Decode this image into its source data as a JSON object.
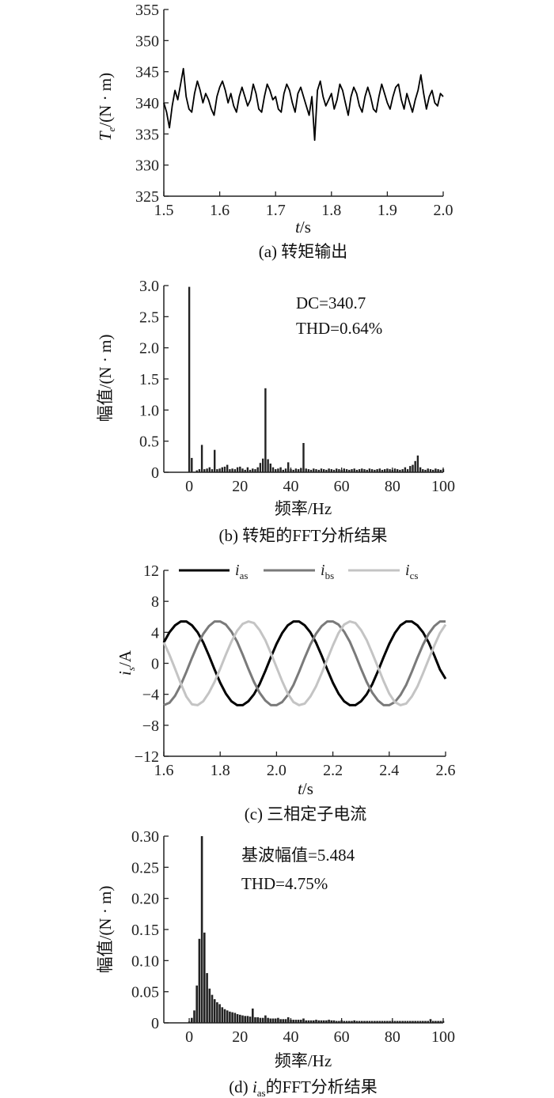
{
  "chart_data": [
    {
      "id": "a",
      "type": "line",
      "caption": "(a) 转矩输出",
      "xlabel_var": "t",
      "xlabel_unit": "/s",
      "ylabel_var": "T",
      "ylabel_sub": "e",
      "ylabel_unit": "/(N · m)",
      "xlim": [
        1.5,
        2.0
      ],
      "ylim": [
        325,
        355
      ],
      "xticks": [
        1.5,
        1.6,
        1.7,
        1.8,
        1.9,
        2.0
      ],
      "xtick_labels": [
        "1.5",
        "1.6",
        "1.7",
        "1.8",
        "1.9",
        "2.0"
      ],
      "yticks": [
        325,
        330,
        335,
        340,
        345,
        350,
        355
      ],
      "ytick_labels": [
        "325",
        "330",
        "335",
        "340",
        "345",
        "350",
        "355"
      ],
      "series": [
        {
          "color": "#000000",
          "x": [
            1.5,
            1.505,
            1.51,
            1.515,
            1.52,
            1.525,
            1.53,
            1.535,
            1.54,
            1.545,
            1.55,
            1.555,
            1.56,
            1.565,
            1.57,
            1.575,
            1.58,
            1.585,
            1.59,
            1.595,
            1.6,
            1.605,
            1.61,
            1.615,
            1.62,
            1.625,
            1.63,
            1.635,
            1.64,
            1.645,
            1.65,
            1.655,
            1.66,
            1.665,
            1.67,
            1.675,
            1.68,
            1.685,
            1.69,
            1.695,
            1.7,
            1.705,
            1.71,
            1.715,
            1.72,
            1.725,
            1.73,
            1.735,
            1.74,
            1.745,
            1.75,
            1.755,
            1.76,
            1.765,
            1.77,
            1.775,
            1.78,
            1.785,
            1.79,
            1.795,
            1.8,
            1.805,
            1.81,
            1.815,
            1.82,
            1.825,
            1.83,
            1.835,
            1.84,
            1.845,
            1.85,
            1.855,
            1.86,
            1.865,
            1.87,
            1.875,
            1.88,
            1.885,
            1.89,
            1.895,
            1.9,
            1.905,
            1.91,
            1.915,
            1.92,
            1.925,
            1.93,
            1.935,
            1.94,
            1.945,
            1.95,
            1.955,
            1.96,
            1.965,
            1.97,
            1.975,
            1.98,
            1.985,
            1.99,
            1.995,
            2.0
          ],
          "y": [
            340.0,
            338.5,
            336.0,
            339.5,
            342.0,
            340.5,
            343.0,
            345.5,
            341.0,
            339.0,
            338.5,
            341.5,
            343.5,
            342.0,
            340.0,
            341.5,
            340.5,
            339.0,
            338.0,
            341.0,
            342.5,
            343.5,
            342.0,
            340.0,
            341.5,
            339.5,
            338.5,
            341.0,
            342.5,
            341.0,
            339.5,
            340.5,
            343.0,
            341.5,
            339.0,
            338.5,
            341.0,
            343.0,
            342.0,
            340.5,
            341.0,
            339.0,
            338.5,
            341.5,
            343.0,
            342.0,
            340.0,
            338.5,
            341.5,
            342.5,
            341.0,
            339.5,
            338.0,
            341.0,
            334.0,
            342.0,
            343.5,
            341.0,
            339.5,
            340.5,
            341.5,
            339.0,
            340.5,
            343.0,
            342.0,
            340.0,
            338.0,
            341.0,
            342.5,
            341.5,
            339.5,
            338.5,
            341.0,
            342.5,
            341.0,
            339.0,
            338.5,
            341.0,
            343.0,
            341.5,
            340.0,
            339.0,
            341.0,
            342.5,
            343.0,
            340.5,
            339.0,
            341.5,
            340.0,
            338.5,
            340.5,
            342.0,
            344.5,
            341.5,
            339.0,
            341.0,
            342.0,
            340.0,
            339.5,
            341.5,
            341.0
          ]
        }
      ]
    },
    {
      "id": "b",
      "type": "bar",
      "caption": "(b) 转矩的FFT分析结果",
      "xlabel": "频率/Hz",
      "ylabel": "幅值/(N · m)",
      "xlim": [
        -10,
        100
      ],
      "ylim": [
        0,
        3.0
      ],
      "xticks": [
        0,
        20,
        40,
        60,
        80,
        100
      ],
      "xtick_labels": [
        "0",
        "20",
        "40",
        "60",
        "80",
        "100"
      ],
      "yticks": [
        0,
        0.5,
        1.0,
        1.5,
        2.0,
        2.5,
        3.0
      ],
      "ytick_labels": [
        "0",
        "0.5",
        "1.0",
        "1.5",
        "2.0",
        "2.5",
        "3.0"
      ],
      "annotations": [
        "DC=340.7",
        "THD=0.64%"
      ],
      "x": [
        0,
        1,
        2,
        3,
        4,
        5,
        6,
        7,
        8,
        9,
        10,
        11,
        12,
        13,
        14,
        15,
        16,
        17,
        18,
        19,
        20,
        21,
        22,
        23,
        24,
        25,
        26,
        27,
        28,
        29,
        30,
        31,
        32,
        33,
        34,
        35,
        36,
        37,
        38,
        39,
        40,
        41,
        42,
        43,
        44,
        45,
        46,
        47,
        48,
        49,
        50,
        51,
        52,
        53,
        54,
        55,
        56,
        57,
        58,
        59,
        60,
        61,
        62,
        63,
        64,
        65,
        66,
        67,
        68,
        69,
        70,
        71,
        72,
        73,
        74,
        75,
        76,
        77,
        78,
        79,
        80,
        81,
        82,
        83,
        84,
        85,
        86,
        87,
        88,
        89,
        90,
        91,
        92,
        93,
        94,
        95,
        96,
        97,
        98,
        99,
        100
      ],
      "values": [
        2.98,
        0.23,
        0.01,
        0.03,
        0.05,
        0.44,
        0.05,
        0.06,
        0.08,
        0.05,
        0.36,
        0.05,
        0.06,
        0.08,
        0.09,
        0.12,
        0.05,
        0.06,
        0.05,
        0.08,
        0.09,
        0.06,
        0.04,
        0.08,
        0.04,
        0.06,
        0.05,
        0.08,
        0.15,
        0.22,
        1.35,
        0.21,
        0.14,
        0.08,
        0.05,
        0.06,
        0.08,
        0.04,
        0.06,
        0.16,
        0.05,
        0.04,
        0.06,
        0.05,
        0.07,
        0.47,
        0.06,
        0.05,
        0.04,
        0.06,
        0.05,
        0.04,
        0.06,
        0.05,
        0.04,
        0.06,
        0.05,
        0.04,
        0.06,
        0.05,
        0.04,
        0.06,
        0.05,
        0.04,
        0.05,
        0.06,
        0.04,
        0.05,
        0.06,
        0.05,
        0.04,
        0.06,
        0.05,
        0.04,
        0.05,
        0.06,
        0.04,
        0.05,
        0.06,
        0.05,
        0.04,
        0.06,
        0.05,
        0.04,
        0.05,
        0.08,
        0.05,
        0.1,
        0.12,
        0.18,
        0.27,
        0.08,
        0.05,
        0.04,
        0.06,
        0.05,
        0.04,
        0.06,
        0.05,
        0.04,
        0.05
      ],
      "color": "#222222"
    },
    {
      "id": "c",
      "type": "line",
      "caption": "(c) 三相定子电流",
      "xlabel_var": "t",
      "xlabel_unit": "/s",
      "ylabel_var": "i",
      "ylabel_sub": "s",
      "ylabel_unit": "/A",
      "xlim": [
        1.6,
        2.6
      ],
      "ylim": [
        -12,
        12
      ],
      "xticks": [
        1.6,
        1.8,
        2.0,
        2.2,
        2.4,
        2.6
      ],
      "xtick_labels": [
        "1.6",
        "1.8",
        "2.0",
        "2.2",
        "2.4",
        "2.6"
      ],
      "yticks": [
        -12,
        -8,
        -4,
        0,
        4,
        8,
        12
      ],
      "ytick_labels": [
        "−12",
        "−8",
        "−4",
        "0",
        "4",
        "8",
        "12"
      ],
      "legend": [
        "i_as",
        "i_bs",
        "i_cs"
      ],
      "legend_main": [
        "i",
        "i",
        "i"
      ],
      "legend_sub": [
        "as",
        "bs",
        "cs"
      ],
      "legend_position": "top",
      "series": [
        {
          "name": "i_as",
          "color": "#000000",
          "x": [
            1.6,
            1.62,
            1.64,
            1.66,
            1.68,
            1.7,
            1.72,
            1.74,
            1.76,
            1.78,
            1.8,
            1.82,
            1.84,
            1.86,
            1.88,
            1.9,
            1.92,
            1.94,
            1.96,
            1.98,
            2.0,
            2.02,
            2.04,
            2.06,
            2.08,
            2.1,
            2.12,
            2.14,
            2.16,
            2.18,
            2.2,
            2.22,
            2.24,
            2.26,
            2.28,
            2.3,
            2.32,
            2.34,
            2.36,
            2.38,
            2.4,
            2.42,
            2.44,
            2.46,
            2.48,
            2.5,
            2.52,
            2.54,
            2.56,
            2.58,
            2.6
          ],
          "y": [
            2.7,
            4.0,
            4.9,
            5.4,
            5.4,
            4.9,
            4.0,
            2.7,
            1.0,
            -0.8,
            -2.5,
            -3.9,
            -4.9,
            -5.4,
            -5.4,
            -4.9,
            -4.0,
            -2.7,
            -1.0,
            0.8,
            2.5,
            3.9,
            4.9,
            5.4,
            5.4,
            4.9,
            4.0,
            2.7,
            1.0,
            -0.8,
            -2.5,
            -3.9,
            -4.9,
            -5.4,
            -5.4,
            -4.9,
            -4.0,
            -2.7,
            -1.0,
            0.8,
            2.5,
            3.9,
            4.9,
            5.4,
            5.4,
            4.9,
            4.0,
            2.7,
            1.0,
            -0.8,
            -2.0
          ]
        },
        {
          "name": "i_bs",
          "color": "#7a7a7a",
          "x": [
            1.6,
            1.62,
            1.64,
            1.66,
            1.68,
            1.7,
            1.72,
            1.74,
            1.76,
            1.78,
            1.8,
            1.82,
            1.84,
            1.86,
            1.88,
            1.9,
            1.92,
            1.94,
            1.96,
            1.98,
            2.0,
            2.02,
            2.04,
            2.06,
            2.08,
            2.1,
            2.12,
            2.14,
            2.16,
            2.18,
            2.2,
            2.22,
            2.24,
            2.26,
            2.28,
            2.3,
            2.32,
            2.34,
            2.36,
            2.38,
            2.4,
            2.42,
            2.44,
            2.46,
            2.48,
            2.5,
            2.52,
            2.54,
            2.56,
            2.58,
            2.6
          ],
          "y": [
            -5.4,
            -5.1,
            -4.2,
            -2.8,
            -1.1,
            0.7,
            2.4,
            3.8,
            4.8,
            5.4,
            5.4,
            5.0,
            4.1,
            2.8,
            1.1,
            -0.7,
            -2.4,
            -3.8,
            -4.8,
            -5.4,
            -5.4,
            -5.0,
            -4.1,
            -2.8,
            -1.1,
            0.7,
            2.4,
            3.8,
            4.8,
            5.4,
            5.4,
            5.0,
            4.1,
            2.8,
            1.1,
            -0.7,
            -2.4,
            -3.8,
            -4.8,
            -5.4,
            -5.4,
            -5.0,
            -4.1,
            -2.8,
            -1.1,
            0.7,
            2.4,
            3.8,
            4.8,
            5.4,
            5.4
          ]
        },
        {
          "name": "i_cs",
          "color": "#c4c4c4",
          "x": [
            1.6,
            1.62,
            1.64,
            1.66,
            1.68,
            1.7,
            1.72,
            1.74,
            1.76,
            1.78,
            1.8,
            1.82,
            1.84,
            1.86,
            1.88,
            1.9,
            1.92,
            1.94,
            1.96,
            1.98,
            2.0,
            2.02,
            2.04,
            2.06,
            2.08,
            2.1,
            2.12,
            2.14,
            2.16,
            2.18,
            2.2,
            2.22,
            2.24,
            2.26,
            2.28,
            2.3,
            2.32,
            2.34,
            2.36,
            2.38,
            2.4,
            2.42,
            2.44,
            2.46,
            2.48,
            2.5,
            2.52,
            2.54,
            2.56,
            2.58,
            2.6
          ],
          "y": [
            2.7,
            1.1,
            -0.7,
            -2.6,
            -4.3,
            -5.3,
            -5.4,
            -4.9,
            -3.8,
            -2.4,
            -0.7,
            1.1,
            2.8,
            4.2,
            5.1,
            5.4,
            5.2,
            4.3,
            3.0,
            1.3,
            -0.5,
            -2.3,
            -3.9,
            -5.0,
            -5.4,
            -5.2,
            -4.3,
            -3.0,
            -1.3,
            0.5,
            2.3,
            3.9,
            5.0,
            5.4,
            5.2,
            4.3,
            3.0,
            1.3,
            -0.5,
            -2.3,
            -3.9,
            -5.0,
            -5.4,
            -5.2,
            -4.3,
            -3.0,
            -1.3,
            0.5,
            2.3,
            3.9,
            5.0
          ]
        }
      ]
    },
    {
      "id": "d",
      "type": "bar",
      "caption_prefix": "(d) ",
      "caption_var": "i",
      "caption_sub": "as",
      "caption_suffix": "的FFT分析结果",
      "xlabel": "频率/Hz",
      "ylabel": "幅值/(N · m)",
      "xlim": [
        -10,
        100
      ],
      "ylim": [
        0,
        0.3
      ],
      "xticks": [
        0,
        20,
        40,
        60,
        80,
        100
      ],
      "xtick_labels": [
        "0",
        "20",
        "40",
        "60",
        "80",
        "100"
      ],
      "yticks": [
        0,
        0.05,
        0.1,
        0.15,
        0.2,
        0.25,
        0.3
      ],
      "ytick_labels": [
        "0",
        "0.05",
        "0.10",
        "0.15",
        "0.20",
        "0.25",
        "0.30"
      ],
      "annotations": [
        "基波幅值=5.484",
        "THD=4.75%"
      ],
      "x": [
        0,
        1,
        2,
        3,
        4,
        5,
        6,
        7,
        8,
        9,
        10,
        11,
        12,
        13,
        14,
        15,
        16,
        17,
        18,
        19,
        20,
        21,
        22,
        23,
        24,
        25,
        26,
        27,
        28,
        29,
        30,
        31,
        32,
        33,
        34,
        35,
        36,
        37,
        38,
        39,
        40,
        41,
        42,
        43,
        44,
        45,
        46,
        47,
        48,
        49,
        50,
        51,
        52,
        53,
        54,
        55,
        56,
        57,
        58,
        59,
        60,
        61,
        62,
        63,
        64,
        65,
        66,
        67,
        68,
        69,
        70,
        71,
        72,
        73,
        74,
        75,
        76,
        77,
        78,
        79,
        80,
        81,
        82,
        83,
        84,
        85,
        86,
        87,
        88,
        89,
        90,
        91,
        92,
        93,
        94,
        95,
        96,
        97,
        98,
        99,
        100
      ],
      "values": [
        0.002,
        0.008,
        0.02,
        0.06,
        0.135,
        0.3,
        0.145,
        0.08,
        0.055,
        0.045,
        0.038,
        0.033,
        0.03,
        0.025,
        0.022,
        0.02,
        0.018,
        0.017,
        0.016,
        0.014,
        0.013,
        0.012,
        0.011,
        0.011,
        0.01,
        0.023,
        0.009,
        0.009,
        0.008,
        0.008,
        0.012,
        0.008,
        0.007,
        0.007,
        0.007,
        0.008,
        0.006,
        0.006,
        0.006,
        0.009,
        0.005,
        0.005,
        0.005,
        0.005,
        0.005,
        0.007,
        0.004,
        0.004,
        0.004,
        0.004,
        0.005,
        0.004,
        0.004,
        0.004,
        0.004,
        0.005,
        0.004,
        0.004,
        0.003,
        0.003,
        0.004,
        0.003,
        0.003,
        0.003,
        0.003,
        0.004,
        0.003,
        0.003,
        0.003,
        0.003,
        0.003,
        0.003,
        0.003,
        0.003,
        0.003,
        0.003,
        0.003,
        0.003,
        0.003,
        0.003,
        0.003,
        0.003,
        0.003,
        0.003,
        0.003,
        0.003,
        0.003,
        0.003,
        0.003,
        0.003,
        0.003,
        0.003,
        0.003,
        0.003,
        0.003,
        0.006,
        0.003,
        0.003,
        0.003,
        0.003,
        0.003
      ],
      "color": "#222222"
    }
  ]
}
